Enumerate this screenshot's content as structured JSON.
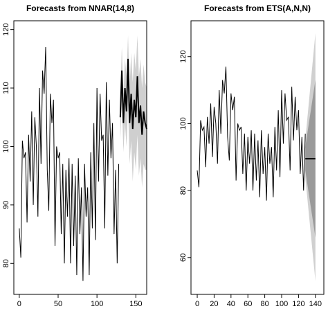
{
  "chart_data": [
    {
      "type": "line",
      "title": "Forecasts from NNAR(14,8)",
      "x": [
        0,
        2,
        4,
        6,
        8,
        10,
        12,
        14,
        16,
        18,
        20,
        22,
        24,
        26,
        28,
        30,
        32,
        34,
        36,
        38,
        40,
        42,
        44,
        46,
        48,
        50,
        52,
        54,
        56,
        58,
        60,
        62,
        64,
        66,
        68,
        70,
        72,
        74,
        76,
        78,
        80,
        82,
        84,
        86,
        88,
        90,
        92,
        94,
        96,
        98,
        100,
        102,
        104,
        106,
        108,
        110,
        112,
        114,
        116,
        118,
        120,
        122,
        124,
        126,
        128
      ],
      "values": [
        86,
        81,
        101,
        98,
        99,
        87,
        102,
        94,
        106,
        90,
        105,
        100,
        88,
        110,
        97,
        113,
        109,
        117,
        96,
        89,
        109,
        104,
        108,
        83,
        100,
        98,
        99,
        85,
        97,
        80,
        96,
        88,
        98,
        80,
        97,
        83,
        95,
        78,
        98,
        85,
        93,
        77,
        97,
        88,
        93,
        78,
        99,
        86,
        104,
        84,
        110,
        94,
        109,
        101,
        102,
        86,
        111,
        95,
        108,
        98,
        104,
        85,
        96,
        80,
        97
      ],
      "color": "#000000",
      "forecast": {
        "x": [
          130,
          132,
          134,
          136,
          138,
          140,
          142,
          144,
          146,
          148,
          150,
          152,
          154,
          156,
          158,
          160,
          162,
          164
        ],
        "values": [
          105,
          113,
          104,
          110,
          106,
          115,
          104,
          109,
          103,
          108,
          105,
          112,
          104,
          107,
          102,
          106,
          104,
          103
        ],
        "lower": [
          101,
          108,
          99,
          104,
          100,
          107,
          97,
          101,
          94,
          99,
          96,
          102,
          95,
          98,
          93,
          97,
          96,
          96
        ],
        "upper": [
          109,
          117,
          109,
          115,
          112,
          119,
          110,
          116,
          111,
          116,
          113,
          119,
          112,
          115,
          110,
          114,
          111,
          110
        ],
        "color": "#000000",
        "band_color": "#cfcfcf"
      },
      "xlim": [
        -7,
        164
      ],
      "ylim": [
        74.7,
        121.5
      ],
      "xticks": [
        0,
        50,
        100,
        150
      ],
      "yticks": [
        80,
        90,
        100,
        110,
        120
      ]
    },
    {
      "type": "line",
      "title": "Forecasts from ETS(A,N,N)",
      "x": [
        0,
        2,
        4,
        6,
        8,
        10,
        12,
        14,
        16,
        18,
        20,
        22,
        24,
        26,
        28,
        30,
        32,
        34,
        36,
        38,
        40,
        42,
        44,
        46,
        48,
        50,
        52,
        54,
        56,
        58,
        60,
        62,
        64,
        66,
        68,
        70,
        72,
        74,
        76,
        78,
        80,
        82,
        84,
        86,
        88,
        90,
        92,
        94,
        96,
        98,
        100,
        102,
        104,
        106,
        108,
        110,
        112,
        114,
        116,
        118,
        120,
        122,
        124,
        126,
        128
      ],
      "values": [
        86,
        81,
        101,
        98,
        99,
        87,
        102,
        94,
        106,
        90,
        105,
        100,
        88,
        110,
        97,
        113,
        109,
        117,
        96,
        89,
        109,
        104,
        108,
        83,
        100,
        98,
        99,
        85,
        97,
        80,
        96,
        88,
        98,
        80,
        97,
        83,
        95,
        78,
        98,
        85,
        93,
        77,
        97,
        88,
        93,
        78,
        99,
        86,
        104,
        84,
        110,
        94,
        109,
        101,
        102,
        86,
        111,
        95,
        108,
        98,
        104,
        85,
        96,
        80,
        97
      ],
      "color": "#000000",
      "forecast": {
        "x": [
          128,
          140
        ],
        "values": [
          89.5,
          89.5
        ],
        "lower80": [
          86,
          66
        ],
        "upper80": [
          93,
          113
        ],
        "lower95": [
          84,
          53
        ],
        "upper95": [
          95,
          127
        ],
        "color": "#000000",
        "color80": "#9a9a9a",
        "color95": "#d0d0d0"
      },
      "xlim": [
        -7.4,
        150
      ],
      "ylim": [
        49,
        130.7
      ],
      "xticks": [
        0,
        20,
        40,
        60,
        80,
        100,
        120,
        140
      ],
      "yticks": [
        60,
        80,
        100,
        120
      ]
    }
  ]
}
